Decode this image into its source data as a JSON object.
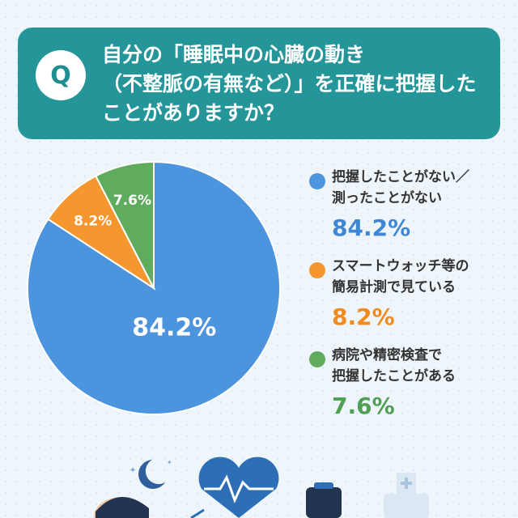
{
  "question": {
    "badge": "Q",
    "text": "自分の「睡眠中の心臓の動き\n（不整脈の有無など）」を正確に把握した\nことがありますか？"
  },
  "chart_data": {
    "type": "pie",
    "slices": [
      {
        "label": "把握したことがない／\n測ったことがない",
        "value": 84.2,
        "display": "84.2%",
        "color": "#4d94de"
      },
      {
        "label": "スマートウォッチ等の\n簡易計測で見ている",
        "value": 8.2,
        "display": "8.2%",
        "color": "#f6962e"
      },
      {
        "label": "病院や精密検査で\n把握したことがある",
        "value": 7.6,
        "display": "7.6%",
        "color": "#5fac5e"
      }
    ]
  },
  "legend": [
    {
      "label": "把握したことがない／\n測ったことがない",
      "pct": "84.2%",
      "color": "#4d94de",
      "text_color": "#3f86d4"
    },
    {
      "label": "スマートウォッチ等の\n簡易計測で見ている",
      "pct": "8.2%",
      "color": "#f6962e",
      "text_color": "#f28a1e"
    },
    {
      "label": "病院や精密検査で\n把握したことがある",
      "pct": "7.6%",
      "color": "#5fac5e",
      "text_color": "#4fa052"
    }
  ],
  "colors": {
    "teal": "#24969a",
    "background": "#eef6fb"
  },
  "illustrations": [
    "moon-icon",
    "sleeping-person-icon",
    "heart-ecg-icon",
    "smartwatch-icon",
    "medical-cross-icon"
  ]
}
